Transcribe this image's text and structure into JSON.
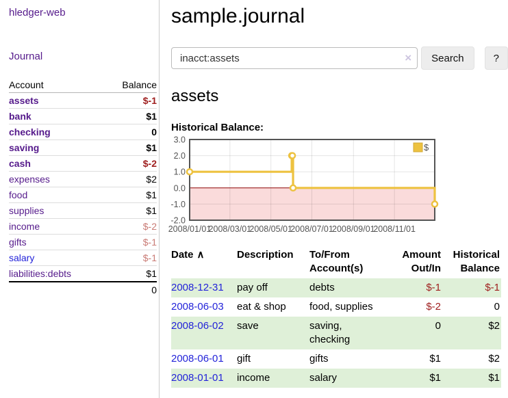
{
  "sidebar": {
    "brand": "hledger-web",
    "journal_link": "Journal",
    "accounts_header": {
      "account": "Account",
      "balance": "Balance"
    },
    "accounts": [
      {
        "key": "assets",
        "name": "assets",
        "indent": 1,
        "bold": true,
        "balance": "$-1",
        "balance_style": "neg"
      },
      {
        "key": "bank",
        "name": "bank",
        "indent": 2,
        "bold": true,
        "balance": "$1",
        "balance_style": ""
      },
      {
        "key": "checking",
        "name": "checking",
        "indent": 3,
        "bold": true,
        "balance": "0",
        "balance_style": ""
      },
      {
        "key": "saving",
        "name": "saving",
        "indent": 3,
        "bold": true,
        "balance": "$1",
        "balance_style": ""
      },
      {
        "key": "cash",
        "name": "cash",
        "indent": 2,
        "bold": true,
        "balance": "$-2",
        "balance_style": "neg"
      },
      {
        "key": "expenses",
        "name": "expenses",
        "indent": 1,
        "bold": false,
        "balance": "$2",
        "balance_style": ""
      },
      {
        "key": "food",
        "name": "food",
        "indent": 2,
        "bold": false,
        "balance": "$1",
        "balance_style": ""
      },
      {
        "key": "supplies",
        "name": "supplies",
        "indent": 2,
        "bold": false,
        "balance": "$1",
        "balance_style": ""
      },
      {
        "key": "income",
        "name": "income",
        "indent": 1,
        "bold": false,
        "balance": "$-2",
        "balance_style": "negl"
      },
      {
        "key": "gifts",
        "name": "gifts",
        "indent": 2,
        "bold": false,
        "balance": "$-1",
        "balance_style": "negl"
      },
      {
        "key": "salary",
        "name": "salary",
        "indent": 2,
        "bold": false,
        "balance": "$-1",
        "balance_style": "negl",
        "link_style": "blue"
      },
      {
        "key": "liabilities-debts",
        "name": "liabilities:debts",
        "indent": 1,
        "bold": false,
        "balance": "$1",
        "balance_style": ""
      }
    ],
    "total": "0"
  },
  "main": {
    "title": "sample.journal",
    "search": {
      "value": "inacct:assets",
      "clear_icon": "×",
      "button_label": "Search",
      "help_label": "?"
    },
    "heading": "assets",
    "chart_label": "Historical Balance:"
  },
  "chart_data": {
    "type": "line",
    "step": true,
    "title": "Historical Balance",
    "xlim": [
      "2008-01-01",
      "2008-12-31"
    ],
    "ylim": [
      -2,
      3
    ],
    "x_ticks": [
      {
        "date": "2008-01-01",
        "label": "2008/01/01"
      },
      {
        "date": "2008-03-01",
        "label": "2008/03/01"
      },
      {
        "date": "2008-05-01",
        "label": "2008/05/01"
      },
      {
        "date": "2008-07-01",
        "label": "2008/07/01"
      },
      {
        "date": "2008-09-01",
        "label": "2008/09/01"
      },
      {
        "date": "2008-11-01",
        "label": "2008/11/01"
      }
    ],
    "y_ticks": [
      {
        "value": 3,
        "label": "3.0"
      },
      {
        "value": 2,
        "label": "2.0"
      },
      {
        "value": 1,
        "label": "1.0"
      },
      {
        "value": 0,
        "label": "0.0"
      },
      {
        "value": -1,
        "label": "-1.0"
      },
      {
        "value": -2,
        "label": "-2.0"
      }
    ],
    "series": [
      {
        "name": "$",
        "color": "#edc240",
        "points": [
          [
            "2008-01-01",
            1
          ],
          [
            "2008-06-01",
            2
          ],
          [
            "2008-06-02",
            2
          ],
          [
            "2008-06-03",
            0
          ],
          [
            "2008-12-31",
            -1
          ]
        ]
      }
    ],
    "legend_position": "top-right",
    "grid": true,
    "negative_region_color": "#fadbdb",
    "zero_line_color": "#8b0000"
  },
  "register": {
    "columns": [
      {
        "key": "date",
        "label": "Date",
        "align": "left",
        "sort_icon": "∧"
      },
      {
        "key": "description",
        "label": "Description",
        "align": "left"
      },
      {
        "key": "accounts",
        "label": "To/From Account(s)",
        "align": "left"
      },
      {
        "key": "amount",
        "label": "Amount Out/In",
        "align": "right"
      },
      {
        "key": "balance",
        "label": "Historical Balance",
        "align": "right"
      }
    ],
    "rows": [
      {
        "date": "2008-12-31",
        "description": "pay off",
        "accounts": "debts",
        "amount": "$-1",
        "amount_neg": true,
        "balance": "$-1",
        "balance_neg": true
      },
      {
        "date": "2008-06-03",
        "description": "eat & shop",
        "accounts": "food, supplies",
        "amount": "$-2",
        "amount_neg": true,
        "balance": "0",
        "balance_neg": false
      },
      {
        "date": "2008-06-02",
        "description": "save",
        "accounts": "saving, checking",
        "amount": "0",
        "amount_neg": false,
        "balance": "$2",
        "balance_neg": false
      },
      {
        "date": "2008-06-01",
        "description": "gift",
        "accounts": "gifts",
        "amount": "$1",
        "amount_neg": false,
        "balance": "$2",
        "balance_neg": false
      },
      {
        "date": "2008-01-01",
        "description": "income",
        "accounts": "salary",
        "amount": "$1",
        "amount_neg": false,
        "balance": "$1",
        "balance_neg": false
      }
    ]
  },
  "colors": {
    "link_purple": "#551a8b",
    "link_blue": "#2323d9",
    "negative": "#9e1d1d",
    "negative_light": "#c97a74",
    "row_stripe_green": "#dff0d8",
    "chart_line": "#edc240",
    "chart_negative_bg": "#fadbdb",
    "chart_zero_line": "#8b0000",
    "chart_border": "#545454"
  }
}
